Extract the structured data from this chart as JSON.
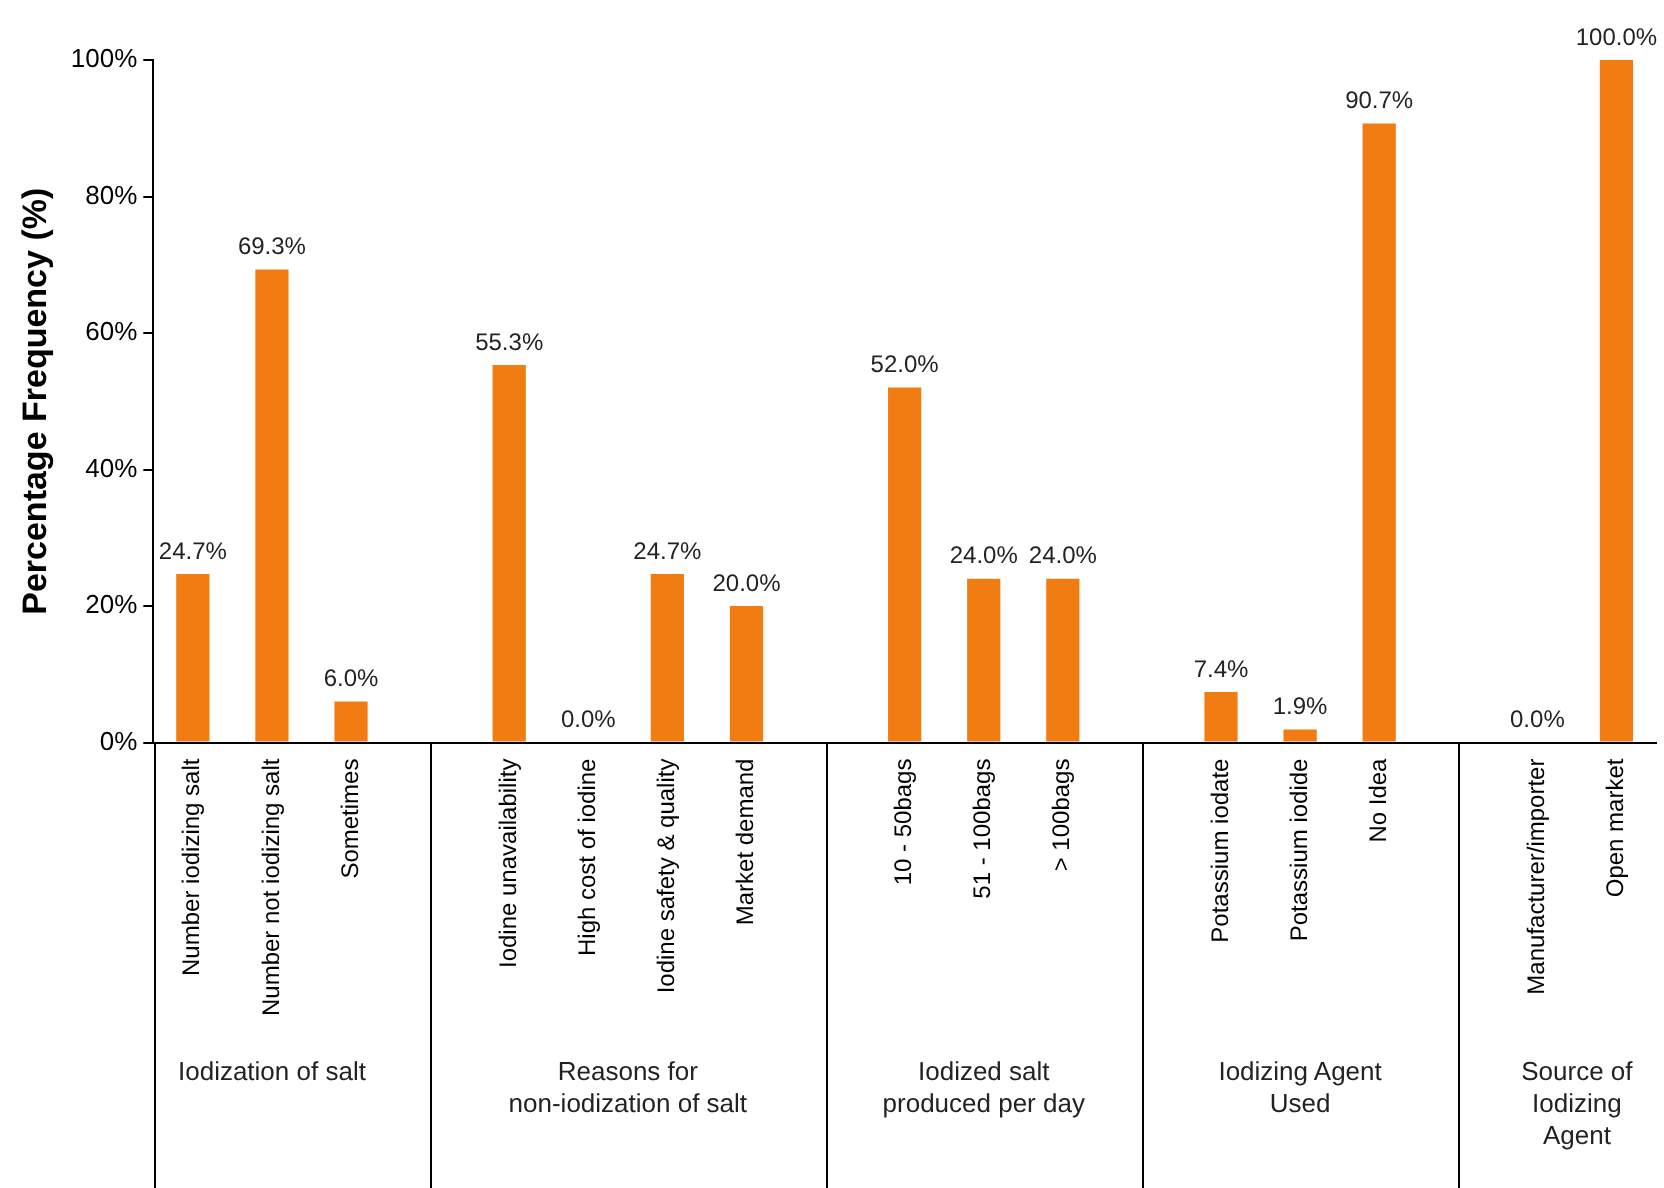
{
  "chart_data": {
    "type": "bar",
    "ylabel": "Percentage Frequency (%)",
    "categories": [
      "Number iodizing salt",
      "Number not iodizing salt",
      "Sometimes",
      null,
      "Iodine unavailability",
      "High cost of iodine",
      "Iodine safety & quality",
      "Market demand",
      null,
      "10 - 50bags",
      "51 - 100bags",
      "> 100bags",
      null,
      "Potassium iodate",
      "Potassium iodide",
      "No Idea",
      null,
      "Manufacturer/importer",
      "Open market"
    ],
    "values": [
      24.7,
      69.3,
      6.0,
      null,
      55.3,
      0.0,
      24.7,
      20.0,
      null,
      52.0,
      24.0,
      24.0,
      null,
      7.4,
      1.9,
      90.7,
      null,
      0.0,
      100.0
    ],
    "value_labels": [
      "24.7%",
      "69.3%",
      "6.0%",
      null,
      "55.3%",
      "0.0%",
      "24.7%",
      "20.0%",
      null,
      "52.0%",
      "24.0%",
      "24.0%",
      null,
      "7.4%",
      "1.9%",
      "90.7%",
      null,
      "0.0%",
      "100.0%"
    ],
    "color": "#f07c12",
    "ylim": [
      0,
      100
    ],
    "yticks": [
      {
        "value": 0,
        "label": "0%"
      },
      {
        "value": 20,
        "label": "20%"
      },
      {
        "value": 40,
        "label": "40%"
      },
      {
        "value": 60,
        "label": "60%"
      },
      {
        "value": 80,
        "label": "80%"
      },
      {
        "value": 100,
        "label": "100%"
      }
    ],
    "grid": false,
    "legend": false,
    "annotations": [
      "Iodization of salt",
      "Reasons for non-iodization of salt",
      "Iodized salt produced per day",
      "Iodizing Agent Used",
      "Source of Iodizing Agent"
    ]
  }
}
